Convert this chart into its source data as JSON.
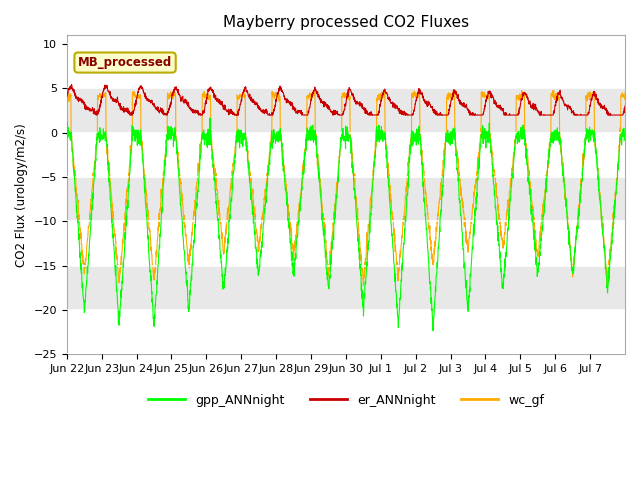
{
  "title": "Mayberry processed CO2 Fluxes",
  "ylabel": "CO2 Flux (urology/m2/s)",
  "ylim": [
    -25,
    11
  ],
  "yticks": [
    -25,
    -20,
    -15,
    -10,
    -5,
    0,
    5,
    10
  ],
  "background_color": "#ffffff",
  "plot_bg_color": "#ffffff",
  "grid_color": "#d8d8d8",
  "annotation_text": "MB_processed",
  "annotation_bg": "#ffffcc",
  "annotation_edge": "#cccc00",
  "annotation_text_color": "#880000",
  "line_colors": {
    "gpp": "#00ff00",
    "er": "#cc0000",
    "wc": "#ffaa00"
  },
  "legend_labels": [
    "gpp_ANNnight",
    "er_ANNnight",
    "wc_gf"
  ],
  "n_days": 16,
  "x_tick_labels": [
    "Jun 22",
    "Jun 23",
    "Jun 24",
    "Jun 25",
    "Jun 26",
    "Jun 27",
    "Jun 28",
    "Jun 29",
    "Jun 30",
    "Jul 1",
    "Jul 2",
    "Jul 3",
    "Jul 4",
    "Jul 5",
    "Jul 6",
    "Jul 7"
  ],
  "band_colors": [
    "#ffffff",
    "#e8e8e8"
  ]
}
